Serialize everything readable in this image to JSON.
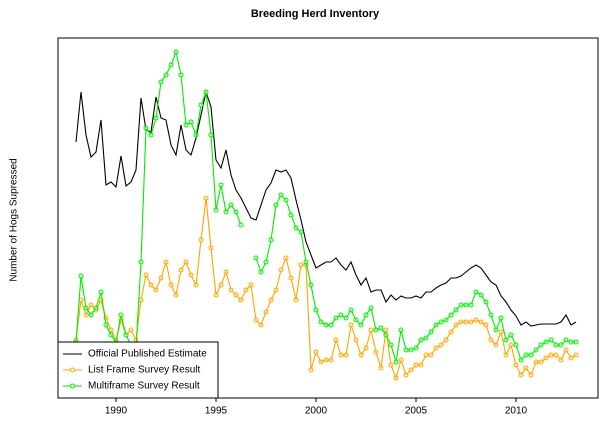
{
  "chart_data": {
    "type": "line",
    "title": "Breeding Herd Inventory",
    "y_label": "Number of Hogs Supressed",
    "x": [
      1988,
      1988.25,
      1988.5,
      1988.75,
      1989,
      1989.25,
      1989.5,
      1989.75,
      1990,
      1990.25,
      1990.5,
      1990.75,
      1991,
      1991.25,
      1991.5,
      1991.75,
      1992,
      1992.25,
      1992.5,
      1992.75,
      1993,
      1993.25,
      1993.5,
      1993.75,
      1994,
      1994.25,
      1994.5,
      1994.75,
      1995,
      1995.25,
      1995.5,
      1995.75,
      1996,
      1996.25,
      1996.5,
      1996.75,
      1997,
      1997.25,
      1997.5,
      1997.75,
      1998,
      1998.25,
      1998.5,
      1998.75,
      1999,
      1999.25,
      1999.5,
      1999.75,
      2000,
      2000.25,
      2000.5,
      2000.75,
      2001,
      2001.25,
      2001.5,
      2001.75,
      2002,
      2002.25,
      2002.5,
      2002.75,
      2003,
      2003.25,
      2003.5,
      2003.75,
      2004,
      2004.25,
      2004.5,
      2004.75,
      2005,
      2005.25,
      2005.5,
      2005.75,
      2006,
      2006.25,
      2006.5,
      2006.75,
      2007,
      2007.25,
      2007.5,
      2007.75,
      2008,
      2008.25,
      2008.5,
      2008.75,
      2009,
      2009.25,
      2009.5,
      2009.75,
      2010,
      2010.25,
      2010.5,
      2010.75,
      2011,
      2011.25,
      2011.5,
      2011.75,
      2012,
      2012.25,
      2012.5,
      2012.75,
      2013
    ],
    "series": [
      {
        "name": "Official Published Estimate",
        "color": "#000000",
        "markers": false,
        "values": [
          256,
          306,
          263,
          241,
          246,
          278,
          213,
          216,
          211,
          242,
          212,
          216,
          228,
          300,
          268,
          266,
          301,
          280,
          278,
          253,
          243,
          273,
          248,
          243,
          260,
          283,
          306,
          291,
          238,
          230,
          248,
          223,
          208,
          200,
          190,
          180,
          178,
          193,
          208,
          215,
          228,
          226,
          228,
          220,
          198,
          178,
          156,
          143,
          130,
          133,
          136,
          136,
          140,
          133,
          128,
          136,
          123,
          113,
          120,
          106,
          108,
          108,
          96,
          103,
          98,
          102,
          100,
          100,
          102,
          100,
          106,
          106,
          110,
          113,
          115,
          120,
          120,
          122,
          126,
          130,
          133,
          130,
          123,
          116,
          113,
          102,
          96,
          88,
          82,
          73,
          76,
          72,
          73,
          74,
          74,
          74,
          74,
          76,
          83,
          73,
          76
        ]
      },
      {
        "name": "List Frame Survey Result",
        "color": "#ffa500",
        "markers": true,
        "values": [
          58,
          98,
          83,
          93,
          88,
          98,
          80,
          68,
          58,
          78,
          63,
          68,
          58,
          98,
          123,
          113,
          108,
          120,
          136,
          113,
          103,
          128,
          136,
          123,
          113,
          158,
          200,
          150,
          103,
          113,
          126,
          108,
          103,
          98,
          108,
          113,
          78,
          73,
          86,
          98,
          108,
          128,
          140,
          120,
          98,
          133,
          133,
          28,
          46,
          36,
          38,
          38,
          58,
          43,
          43,
          73,
          58,
          43,
          50,
          68,
          46,
          30,
          68,
          33,
          20,
          38,
          23,
          28,
          33,
          33,
          43,
          43,
          50,
          53,
          58,
          66,
          73,
          76,
          76,
          76,
          78,
          76,
          73,
          58,
          53,
          66,
          43,
          53,
          33,
          23,
          30,
          23,
          36,
          36,
          40,
          43,
          43,
          38,
          48,
          40,
          43
        ]
      },
      {
        "name": "Multiframe Survey Result",
        "color": "#00ee00",
        "markers": true,
        "values": [
          56,
          122,
          90,
          83,
          90,
          106,
          73,
          63,
          56,
          83,
          63,
          53,
          50,
          136,
          270,
          263,
          280,
          316,
          323,
          333,
          346,
          323,
          273,
          276,
          263,
          293,
          306,
          263,
          188,
          213,
          186,
          193,
          186,
          173,
          null,
          null,
          140,
          126,
          136,
          158,
          193,
          203,
          198,
          183,
          170,
          166,
          136,
          113,
          88,
          76,
          73,
          73,
          80,
          83,
          80,
          88,
          78,
          73,
          83,
          90,
          68,
          70,
          63,
          53,
          36,
          68,
          48,
          48,
          50,
          58,
          60,
          66,
          73,
          76,
          78,
          83,
          88,
          93,
          93,
          93,
          106,
          103,
          96,
          83,
          68,
          80,
          58,
          63,
          53,
          38,
          43,
          43,
          48,
          53,
          56,
          58,
          53,
          53,
          58,
          56,
          56
        ]
      }
    ],
    "xlim": [
      1987.1,
      2014.1
    ],
    "xticks": [
      1990,
      1995,
      2000,
      2005,
      2010
    ],
    "ylim": [
      0,
      360
    ],
    "legend_position": "bottom-left"
  }
}
